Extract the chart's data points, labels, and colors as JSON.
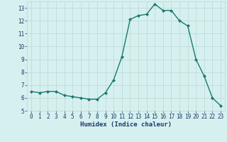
{
  "x": [
    0,
    1,
    2,
    3,
    4,
    5,
    6,
    7,
    8,
    9,
    10,
    11,
    12,
    13,
    14,
    15,
    16,
    17,
    18,
    19,
    20,
    21,
    22,
    23
  ],
  "y": [
    6.5,
    6.4,
    6.5,
    6.5,
    6.2,
    6.1,
    6.0,
    5.9,
    5.9,
    6.4,
    7.4,
    9.2,
    12.1,
    12.4,
    12.5,
    13.3,
    12.8,
    12.8,
    12.0,
    11.6,
    9.0,
    7.7,
    6.0,
    5.4
  ],
  "xlabel": "Humidex (Indice chaleur)",
  "ylim": [
    5,
    13.5
  ],
  "xlim": [
    -0.5,
    23.5
  ],
  "yticks": [
    5,
    6,
    7,
    8,
    9,
    10,
    11,
    12,
    13
  ],
  "xticks": [
    0,
    1,
    2,
    3,
    4,
    5,
    6,
    7,
    8,
    9,
    10,
    11,
    12,
    13,
    14,
    15,
    16,
    17,
    18,
    19,
    20,
    21,
    22,
    23
  ],
  "line_color": "#1a7a6e",
  "marker": "D",
  "marker_size": 2,
  "bg_color": "#d6f0ef",
  "grid_color": "#b8d8d5",
  "xlabel_color": "#1a3a6e",
  "tick_label_color": "#1a3a6e",
  "line_width": 1.0,
  "tick_fontsize": 5.5,
  "xlabel_fontsize": 6.5
}
